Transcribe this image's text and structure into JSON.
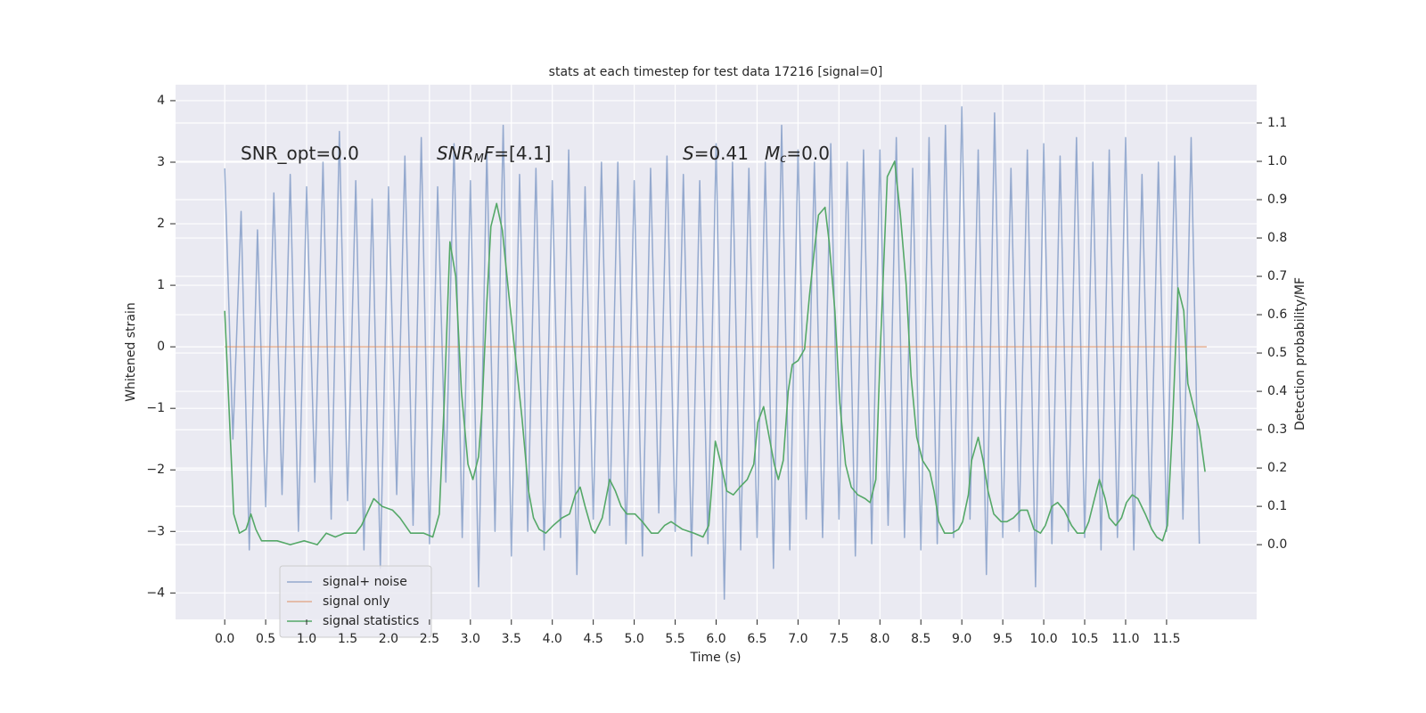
{
  "chart_data": {
    "type": "line",
    "title": "stats at each timestep for test data 17216 [signal=0]",
    "xlabel": "Time (s)",
    "ylabel": "Whitened strain",
    "y2label": "Detection probability/MF",
    "annotations": [
      [
        "SNR_opt=0.0"
      ],
      [
        "SNR",
        "M",
        "F",
        "=[4.1]"
      ],
      [
        "S",
        "=0.41"
      ],
      [
        "M",
        "c",
        "=0.0"
      ]
    ],
    "xlim": [
      -0.6,
      12.6
    ],
    "ylim": [
      -4.43,
      4.26
    ],
    "y2lim": [
      -0.195,
      1.2
    ],
    "xticks": [
      {
        "value": 0,
        "label": "0.0"
      },
      0.5,
      {
        "value": 1,
        "label": "1.0"
      },
      1.5,
      {
        "value": 2,
        "label": "2.0"
      },
      2.5,
      {
        "value": 3,
        "label": "3.0"
      },
      3.5,
      {
        "value": 4,
        "label": "4.0"
      },
      4.5,
      {
        "value": 5,
        "label": "5.0"
      },
      5.5,
      {
        "value": 6,
        "label": "6.0"
      },
      6.5,
      {
        "value": 7,
        "label": "7.0"
      },
      7.5,
      {
        "value": 8,
        "label": "8.0"
      },
      8.5,
      {
        "value": 9,
        "label": "9.0"
      },
      9.5,
      {
        "value": 10,
        "label": "10.0"
      },
      10.5,
      {
        "value": 11,
        "label": "11.0"
      },
      11.5
    ],
    "yticks": [
      {
        "value": -4,
        "label": "−4"
      },
      {
        "value": -3,
        "label": "−3"
      },
      {
        "value": -2,
        "label": "−2"
      },
      {
        "value": -1,
        "label": "−1"
      },
      0,
      1,
      2,
      3,
      4
    ],
    "y2ticks": [
      {
        "value": 0,
        "label": "0.0"
      },
      0.1,
      0.2,
      0.3,
      0.4,
      0.5,
      0.6,
      0.7,
      0.8,
      0.9,
      {
        "value": 1,
        "label": "1.0"
      },
      1.1
    ],
    "grid": true,
    "legend": "lower left",
    "series": [
      {
        "name": "signal+ noise",
        "color": "#4c72b0",
        "x": [
          0,
          0.1,
          0.2,
          0.3,
          0.4,
          0.5,
          0.6,
          0.7,
          0.8,
          0.9,
          1,
          1.1,
          1.2,
          1.3,
          1.4,
          1.5,
          1.6,
          1.7,
          1.8,
          1.9,
          2,
          2.1,
          2.2,
          2.3,
          2.4,
          2.5,
          2.6,
          2.7,
          2.8,
          2.9,
          3,
          3.1,
          3.2,
          3.3,
          3.4,
          3.5,
          3.6,
          3.7,
          3.8,
          3.9,
          4,
          4.1,
          4.2,
          4.3,
          4.4,
          4.5,
          4.6,
          4.7,
          4.8,
          4.9,
          5,
          5.1,
          5.2,
          5.3,
          5.4,
          5.5,
          5.6,
          5.7,
          5.8,
          5.9,
          6,
          6.1,
          6.2,
          6.3,
          6.4,
          6.5,
          6.6,
          6.7,
          6.8,
          6.9,
          7,
          7.1,
          7.2,
          7.3,
          7.4,
          7.5,
          7.6,
          7.7,
          7.8,
          7.9,
          8,
          8.1,
          8.2,
          8.3,
          8.4,
          8.5,
          8.6,
          8.7,
          8.8,
          8.9,
          9,
          9.1,
          9.2,
          9.3,
          9.4,
          9.5,
          9.6,
          9.7,
          9.8,
          9.9,
          10,
          10.1,
          10.2,
          10.3,
          10.4,
          10.5,
          10.6,
          10.7,
          10.8,
          10.9,
          11,
          11.1,
          11.2,
          11.3,
          11.4,
          11.5,
          11.6,
          11.7,
          11.8,
          11.9
        ],
        "values": [
          2.9,
          -1.5,
          2.2,
          -3.3,
          1.9,
          -2.6,
          2.5,
          -2.4,
          2.8,
          -3.0,
          2.6,
          -2.2,
          3.0,
          -2.8,
          3.5,
          -2.5,
          2.7,
          -3.3,
          2.4,
          -3.6,
          2.6,
          -2.4,
          3.1,
          -2.9,
          3.4,
          -3.2,
          2.6,
          -2.2,
          3.3,
          -3.1,
          2.7,
          -3.9,
          3.2,
          -3.0,
          3.6,
          -3.4,
          2.8,
          -3.0,
          2.9,
          -3.3,
          2.7,
          -3.1,
          3.2,
          -3.7,
          2.6,
          -2.8,
          3.0,
          -2.9,
          3.0,
          -3.2,
          2.7,
          -3.4,
          2.9,
          -2.7,
          3.1,
          -3.0,
          2.8,
          -3.4,
          2.7,
          -3.2,
          3.3,
          -4.1,
          3.0,
          -3.3,
          2.9,
          -3.1,
          3.0,
          -3.6,
          3.6,
          -3.3,
          3.2,
          -2.8,
          3.0,
          -3.1,
          3.3,
          -2.8,
          3.0,
          -3.4,
          3.2,
          -3.2,
          3.2,
          -2.9,
          3.4,
          -3.1,
          2.9,
          -3.3,
          3.4,
          -3.2,
          3.6,
          -3.1,
          3.9,
          -2.8,
          3.2,
          -3.7,
          3.8,
          -3.1,
          2.9,
          -3.0,
          3.2,
          -3.9,
          3.3,
          -3.2,
          3.1,
          -3.0,
          3.4,
          -3.1,
          3.0,
          -3.3,
          3.2,
          -3.1,
          3.4,
          -3.3,
          2.8,
          -2.9,
          3.0,
          -3.0,
          3.1,
          -2.8,
          3.4,
          -3.2
        ]
      },
      {
        "name": "signal only",
        "color": "#dd8452",
        "x": [
          0,
          11.99
        ],
        "values": [
          0,
          0
        ]
      },
      {
        "name": "signal statistics",
        "color": "#55a868",
        "axis": "y2",
        "x": [
          0,
          0.11,
          0.18,
          0.26,
          0.32,
          0.38,
          0.45,
          0.53,
          0.64,
          0.8,
          0.97,
          1.13,
          1.24,
          1.35,
          1.46,
          1.6,
          1.67,
          1.82,
          1.92,
          2.05,
          2.14,
          2.27,
          2.43,
          2.54,
          2.62,
          2.68,
          2.75,
          2.82,
          2.89,
          2.97,
          3.03,
          3.1,
          3.14,
          3.2,
          3.25,
          3.32,
          3.39,
          3.47,
          3.55,
          3.63,
          3.71,
          3.77,
          3.84,
          3.92,
          4.01,
          4.12,
          4.21,
          4.28,
          4.34,
          4.4,
          4.48,
          4.52,
          4.61,
          4.7,
          4.77,
          4.84,
          4.91,
          5.01,
          5.1,
          5.21,
          5.29,
          5.37,
          5.45,
          5.59,
          5.73,
          5.84,
          5.91,
          5.99,
          6.05,
          6.13,
          6.21,
          6.29,
          6.38,
          6.46,
          6.51,
          6.58,
          6.64,
          6.71,
          6.76,
          6.82,
          6.88,
          6.93,
          7.0,
          7.08,
          7.14,
          7.2,
          7.25,
          7.33,
          7.38,
          7.45,
          7.51,
          7.58,
          7.65,
          7.73,
          7.82,
          7.88,
          7.95,
          8.01,
          8.09,
          8.18,
          8.25,
          8.32,
          8.38,
          8.45,
          8.52,
          8.61,
          8.66,
          8.72,
          8.79,
          8.88,
          8.96,
          9.01,
          9.08,
          9.12,
          9.2,
          9.26,
          9.32,
          9.39,
          9.48,
          9.55,
          9.63,
          9.72,
          9.8,
          9.88,
          9.96,
          10.02,
          10.1,
          10.17,
          10.25,
          10.34,
          10.41,
          10.49,
          10.55,
          10.62,
          10.68,
          10.75,
          10.8,
          10.88,
          10.95,
          11.01,
          11.08,
          11.15,
          11.24,
          11.32,
          11.38,
          11.45,
          11.51,
          11.57,
          11.64,
          11.71,
          11.76,
          11.84,
          11.9,
          11.97
        ],
        "values": [
          0.61,
          0.08,
          0.03,
          0.04,
          0.08,
          0.04,
          0.01,
          0.01,
          0.01,
          0.0,
          0.01,
          0.0,
          0.03,
          0.02,
          0.03,
          0.03,
          0.05,
          0.12,
          0.1,
          0.09,
          0.07,
          0.03,
          0.03,
          0.02,
          0.08,
          0.37,
          0.79,
          0.7,
          0.4,
          0.21,
          0.17,
          0.23,
          0.35,
          0.63,
          0.83,
          0.89,
          0.82,
          0.65,
          0.49,
          0.33,
          0.14,
          0.07,
          0.04,
          0.03,
          0.05,
          0.07,
          0.08,
          0.13,
          0.15,
          0.1,
          0.04,
          0.03,
          0.07,
          0.17,
          0.14,
          0.1,
          0.08,
          0.08,
          0.06,
          0.03,
          0.03,
          0.05,
          0.06,
          0.04,
          0.03,
          0.02,
          0.05,
          0.27,
          0.22,
          0.14,
          0.13,
          0.15,
          0.17,
          0.21,
          0.32,
          0.36,
          0.29,
          0.21,
          0.17,
          0.22,
          0.4,
          0.47,
          0.48,
          0.51,
          0.65,
          0.77,
          0.86,
          0.88,
          0.79,
          0.61,
          0.37,
          0.21,
          0.15,
          0.13,
          0.12,
          0.11,
          0.17,
          0.54,
          0.96,
          1.0,
          0.86,
          0.68,
          0.44,
          0.28,
          0.22,
          0.19,
          0.14,
          0.06,
          0.03,
          0.03,
          0.04,
          0.06,
          0.13,
          0.22,
          0.28,
          0.22,
          0.14,
          0.08,
          0.06,
          0.06,
          0.07,
          0.09,
          0.09,
          0.04,
          0.03,
          0.05,
          0.1,
          0.11,
          0.09,
          0.05,
          0.03,
          0.03,
          0.06,
          0.12,
          0.17,
          0.12,
          0.07,
          0.05,
          0.07,
          0.11,
          0.13,
          0.12,
          0.08,
          0.04,
          0.02,
          0.01,
          0.05,
          0.3,
          0.67,
          0.61,
          0.42,
          0.35,
          0.3,
          0.19
        ]
      }
    ]
  }
}
